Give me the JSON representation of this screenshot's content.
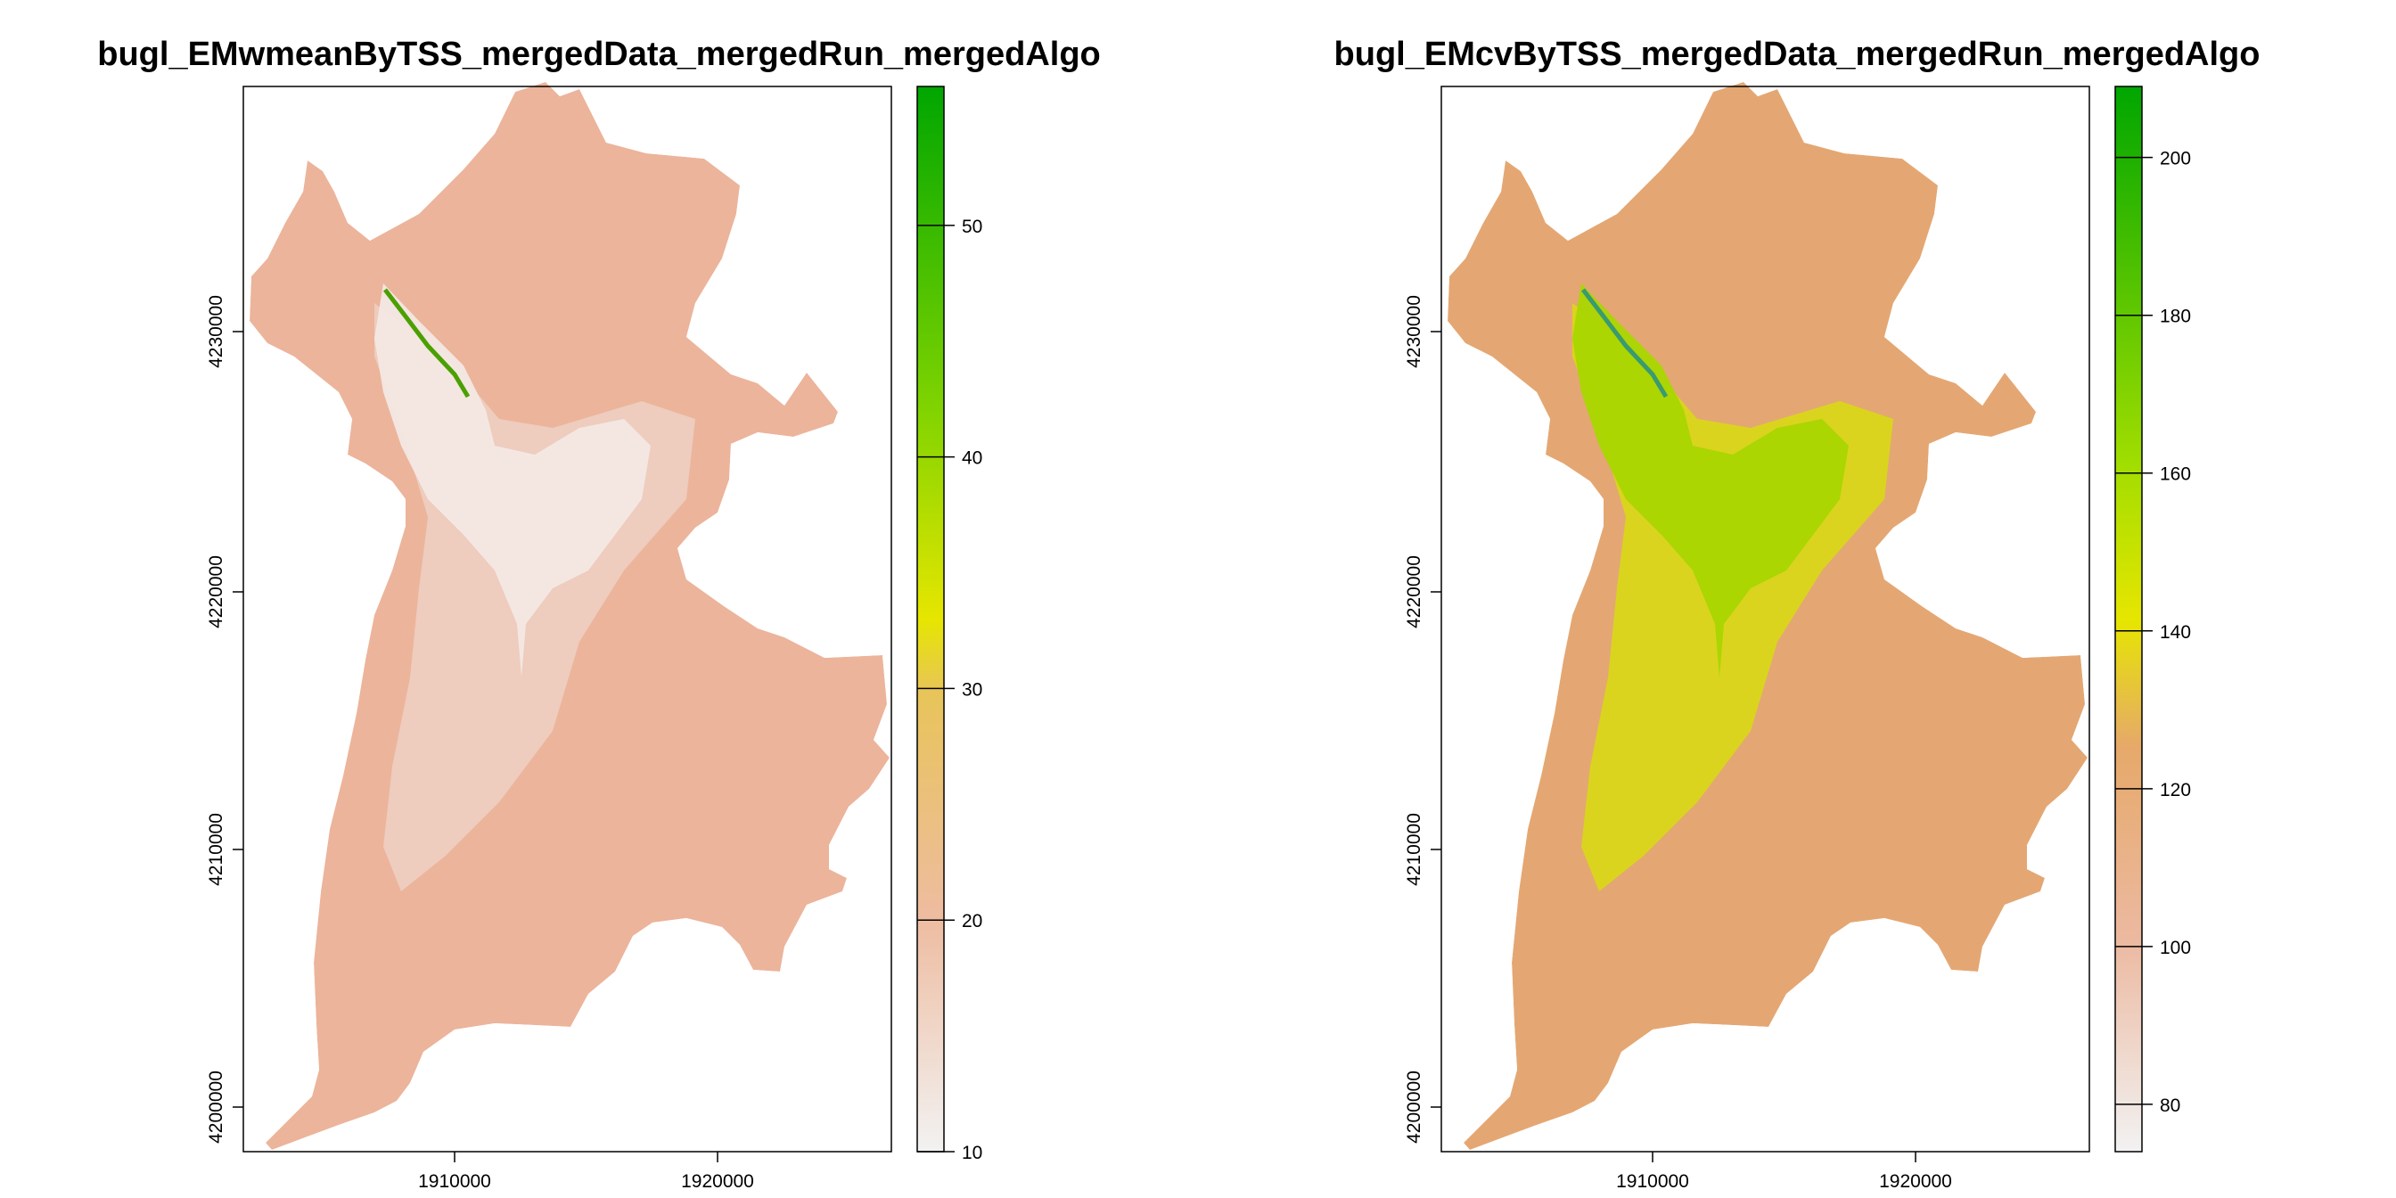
{
  "maps": [
    {
      "id": "wmean",
      "title": "bugl_EMwmeanByTSS_mergedData_mergedRun_mergedAlgo",
      "x_ticks": [
        "1910000",
        "1920000"
      ],
      "y_ticks": [
        "4200000",
        "4210000",
        "4220000",
        "4230000"
      ],
      "legend": {
        "range": [
          10,
          56
        ],
        "ticks": [
          "10",
          "20",
          "30",
          "40",
          "50"
        ],
        "tick_values": [
          10,
          20,
          30,
          40,
          50
        ],
        "colors": [
          "#f2f2f2",
          "#eebca0",
          "#e8c45a",
          "#e6e600",
          "#7fd300",
          "#00a600"
        ],
        "color_stops": [
          0,
          0.22,
          0.43,
          0.5,
          0.7,
          1.0
        ]
      },
      "fill": {
        "base": "#ecb49b",
        "center": "#f3e8e4",
        "mid": "#efd0c4"
      }
    },
    {
      "id": "cv",
      "title": "bugl_EMcvByTSS_mergedData_mergedRun_mergedAlgo",
      "x_ticks": [
        "1910000",
        "1920000"
      ],
      "y_ticks": [
        "4200000",
        "4210000",
        "4220000",
        "4230000"
      ],
      "legend": {
        "range": [
          74,
          209
        ],
        "ticks": [
          "80",
          "100",
          "120",
          "140",
          "160",
          "180",
          "200"
        ],
        "tick_values": [
          80,
          100,
          120,
          140,
          160,
          180,
          200
        ],
        "colors": [
          "#f2f2f2",
          "#ecb9a0",
          "#e6a96a",
          "#e6e600",
          "#9fdd00",
          "#00a600"
        ],
        "color_stops": [
          0,
          0.2,
          0.38,
          0.5,
          0.65,
          1.0
        ]
      },
      "fill": {
        "base": "#e4a773",
        "center": "#a9d600",
        "mid": "#d8dc10"
      }
    }
  ]
}
